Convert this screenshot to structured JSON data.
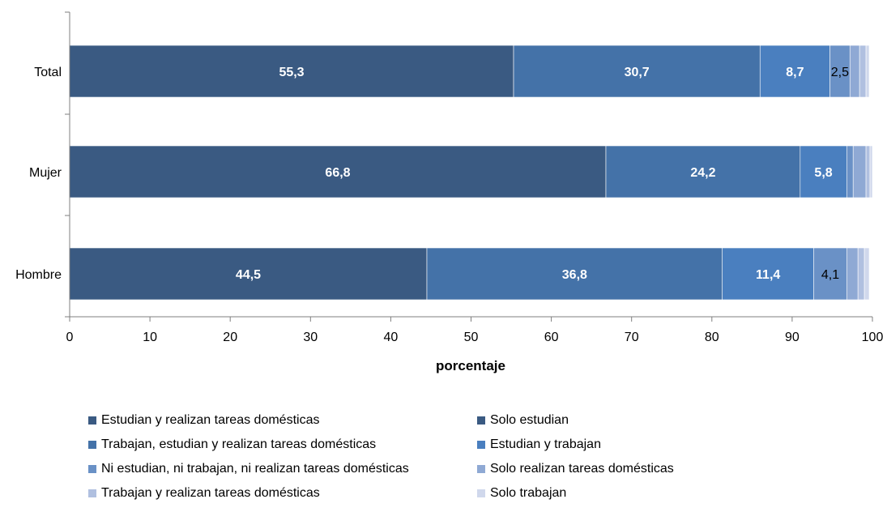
{
  "chart_data": {
    "type": "bar",
    "orientation": "horizontal",
    "stacked": true,
    "categories": [
      "Total",
      "Mujer",
      "Hombre"
    ],
    "xlabel": "porcentaje",
    "ylabel": "",
    "xlim": [
      0,
      100
    ],
    "xticks": [
      "0",
      "10",
      "20",
      "30",
      "40",
      "50",
      "60",
      "70",
      "80",
      "90",
      "100"
    ],
    "grid": false,
    "legend_position": "bottom",
    "series": [
      {
        "name": "Estudian y realizan tareas domésticas",
        "color": "#3a5a82",
        "values": [
          55.3,
          66.8,
          44.5
        ],
        "labels": [
          "55,3",
          "66,8",
          "44,5"
        ]
      },
      {
        "name": "Solo estudian",
        "color": "#3a5a82",
        "values": [
          0,
          0,
          0
        ],
        "labels": [
          "",
          "",
          ""
        ]
      },
      {
        "name": "Trabajan, estudian y realizan tareas domésticas",
        "color": "#4472a8",
        "values": [
          30.7,
          24.2,
          36.8
        ],
        "labels": [
          "30,7",
          "24,2",
          "36,8"
        ]
      },
      {
        "name": "Estudian y trabajan",
        "color": "#4a7fbf",
        "values": [
          8.7,
          5.8,
          11.4
        ],
        "labels": [
          "8,7",
          "5,8",
          "11,4"
        ]
      },
      {
        "name": "Ni estudian, ni trabajan, ni realizan tareas domésticas",
        "color": "#6a91c6",
        "values": [
          2.5,
          0.8,
          4.1
        ],
        "labels": [
          "2,5",
          "",
          "4,1"
        ]
      },
      {
        "name": "Solo realizan tareas domésticas",
        "color": "#8fa9d4",
        "values": [
          1.2,
          1.6,
          1.4
        ],
        "labels": [
          "",
          "",
          ""
        ]
      },
      {
        "name": "Trabajan y realizan tareas domésticas",
        "color": "#b0c0e0",
        "values": [
          0.8,
          0.5,
          0.8
        ],
        "labels": [
          "",
          "",
          ""
        ]
      },
      {
        "name": "Solo trabajan",
        "color": "#d0d8ec",
        "values": [
          0.4,
          0.3,
          0.6
        ],
        "labels": [
          "",
          "",
          ""
        ]
      }
    ],
    "label_dark": [
      "#ffffff",
      "#ffffff",
      "#ffffff",
      "#ffffff",
      "#000000",
      "#000000",
      "#000000",
      "#000000"
    ]
  }
}
